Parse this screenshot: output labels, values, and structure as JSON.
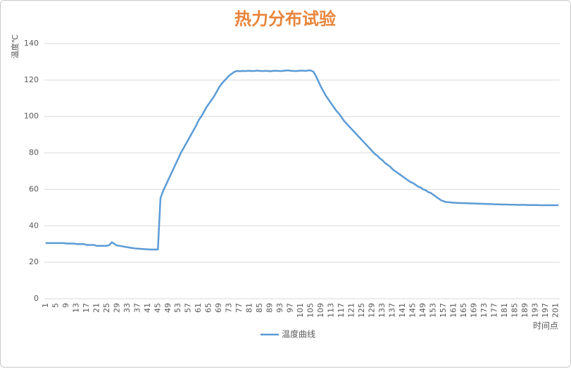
{
  "chart_data": {
    "type": "line",
    "title": "热力分布试验",
    "y_label": "温度℃",
    "x_label": "时间点",
    "categories": [
      1,
      null,
      null,
      null,
      5,
      null,
      null,
      null,
      9,
      null,
      null,
      null,
      13,
      null,
      null,
      null,
      17,
      null,
      null,
      null,
      21,
      null,
      null,
      null,
      25,
      null,
      null,
      null,
      29,
      null,
      null,
      null,
      33,
      null,
      null,
      null,
      37,
      null,
      null,
      null,
      41,
      null,
      null,
      null,
      45,
      null,
      null,
      null,
      49,
      null,
      null,
      null,
      53,
      null,
      null,
      null,
      57,
      null,
      null,
      null,
      61,
      null,
      null,
      null,
      65,
      null,
      null,
      null,
      69,
      null,
      null,
      null,
      73,
      null,
      null,
      null,
      77,
      null,
      null,
      null,
      81,
      null,
      null,
      null,
      85,
      null,
      null,
      null,
      89,
      null,
      null,
      null,
      93,
      null,
      null,
      null,
      97,
      null,
      null,
      null,
      101,
      null,
      null,
      null,
      105,
      null,
      null,
      null,
      109,
      null,
      null,
      null,
      113,
      null,
      null,
      null,
      117,
      null,
      null,
      null,
      121,
      null,
      null,
      null,
      125,
      null,
      null,
      null,
      129,
      null,
      null,
      null,
      133,
      null,
      null,
      null,
      137,
      null,
      null,
      null,
      141,
      null,
      null,
      null,
      145,
      null,
      null,
      null,
      149,
      null,
      null,
      null,
      153,
      null,
      null,
      null,
      157,
      null,
      null,
      null,
      161,
      null,
      null,
      null,
      165,
      null,
      null,
      null,
      169,
      null,
      null,
      null,
      173,
      null,
      null,
      null,
      177,
      null,
      null,
      null,
      181,
      null,
      null,
      null,
      185,
      null,
      null,
      null,
      189,
      null,
      null,
      null,
      193,
      null,
      null,
      null,
      197,
      null,
      null,
      null,
      201,
      null
    ],
    "series": [
      {
        "name": "温度曲线",
        "color": "#5b9bd5",
        "values": [
          30.5,
          30.5,
          30.5,
          30.5,
          30.5,
          30.5,
          30.5,
          30.5,
          30.3,
          30.3,
          30.3,
          30.3,
          30,
          30,
          30,
          30,
          29.5,
          29.5,
          29.5,
          29.5,
          29,
          29,
          29,
          29,
          29,
          29.5,
          31,
          30,
          29.2,
          29,
          28.8,
          28.5,
          28.3,
          28,
          27.8,
          27.6,
          27.5,
          27.4,
          27.3,
          27.2,
          27.1,
          27,
          27,
          27,
          27,
          55,
          59,
          62,
          65,
          68,
          71,
          74,
          77,
          80,
          82.5,
          85,
          87.5,
          90,
          92.5,
          95,
          98,
          100,
          102.5,
          105,
          107,
          109,
          111,
          113.5,
          116,
          118,
          119.5,
          121,
          122.5,
          123.5,
          124.5,
          125,
          124.8,
          125,
          124.9,
          125,
          125.1,
          124.9,
          125,
          125.2,
          125,
          124.9,
          125,
          125,
          124.8,
          125,
          125.1,
          125,
          124.9,
          125,
          125.2,
          125.3,
          125.1,
          125,
          124.9,
          125,
          125.2,
          125.1,
          125,
          125.3,
          125.2,
          124.5,
          122,
          119,
          116,
          113.5,
          111,
          109,
          107,
          105,
          103,
          101.5,
          99.5,
          97.5,
          96,
          94.5,
          93,
          91.5,
          90,
          88.5,
          87,
          85.5,
          84,
          82.5,
          81,
          79.5,
          78.5,
          77,
          76,
          74.5,
          73.5,
          72.5,
          71,
          70,
          69,
          68,
          67,
          66,
          65,
          64,
          63.5,
          62.5,
          61.5,
          61,
          60,
          59.5,
          58.5,
          58,
          57,
          56,
          55,
          54,
          53.5,
          53,
          53,
          52.8,
          52.7,
          52.6,
          52.5,
          52.5,
          52.4,
          52.4,
          52.3,
          52.3,
          52.2,
          52.2,
          52.1,
          52.1,
          52,
          52,
          51.9,
          51.9,
          51.8,
          51.8,
          51.8,
          51.7,
          51.7,
          51.7,
          51.6,
          51.6,
          51.6,
          51.5,
          51.5,
          51.5,
          51.5,
          51.4,
          51.4,
          51.4,
          51.4,
          51.4,
          51.3,
          51.3,
          51.3,
          51.3,
          51.3,
          51.3,
          51.3,
          51.3
        ]
      }
    ],
    "ylim": [
      0,
      140
    ],
    "yticks": [
      0,
      20,
      40,
      60,
      80,
      100,
      120,
      140
    ],
    "grid": true,
    "title_color": "#e8843a"
  }
}
